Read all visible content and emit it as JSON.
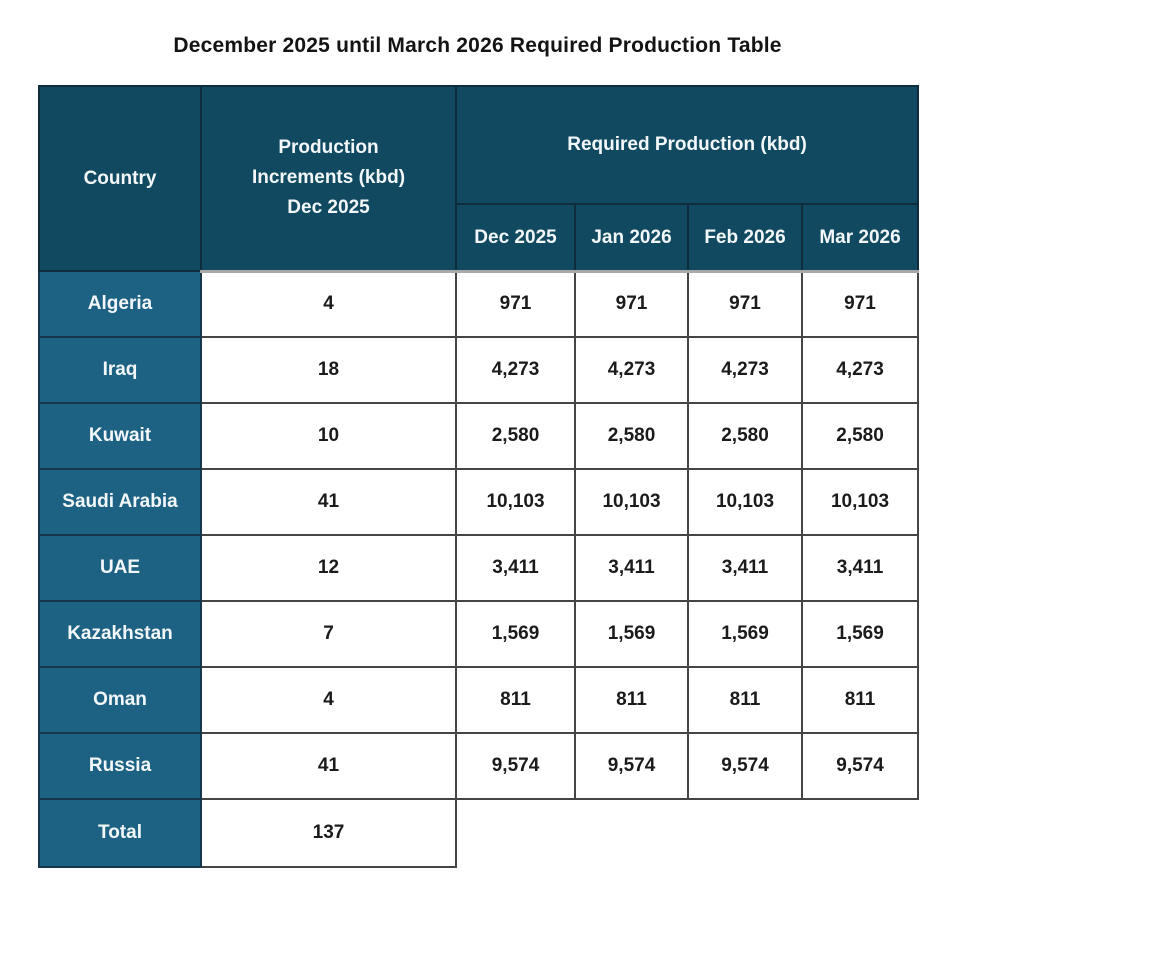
{
  "title": "December 2025 until March 2026 Required Production Table",
  "colors": {
    "header_bg": "#114a60",
    "country_cell_bg": "#1e6283",
    "header_text": "#f3f7f9",
    "data_text": "#1b1b1b",
    "data_border": "#454545",
    "header_border": "#0e2c3c",
    "header_bottom_separator": "#a8a8a8",
    "page_bg": "#ffffff"
  },
  "table": {
    "headers": {
      "country": "Country",
      "increments_line1": "Production Increments (kbd)",
      "increments_line2": "Dec 2025",
      "required": "Required Production (kbd)",
      "months": [
        "Dec 2025",
        "Jan 2026",
        "Feb 2026",
        "Mar 2026"
      ]
    },
    "rows": [
      {
        "country": "Algeria",
        "increment": "4",
        "required": [
          "971",
          "971",
          "971",
          "971"
        ]
      },
      {
        "country": "Iraq",
        "increment": "18",
        "required": [
          "4,273",
          "4,273",
          "4,273",
          "4,273"
        ]
      },
      {
        "country": "Kuwait",
        "increment": "10",
        "required": [
          "2,580",
          "2,580",
          "2,580",
          "2,580"
        ]
      },
      {
        "country": "Saudi Arabia",
        "increment": "41",
        "required": [
          "10,103",
          "10,103",
          "10,103",
          "10,103"
        ]
      },
      {
        "country": "UAE",
        "increment": "12",
        "required": [
          "3,411",
          "3,411",
          "3,411",
          "3,411"
        ]
      },
      {
        "country": "Kazakhstan",
        "increment": "7",
        "required": [
          "1,569",
          "1,569",
          "1,569",
          "1,569"
        ]
      },
      {
        "country": "Oman",
        "increment": "4",
        "required": [
          "811",
          "811",
          "811",
          "811"
        ]
      },
      {
        "country": "Russia",
        "increment": "41",
        "required": [
          "9,574",
          "9,574",
          "9,574",
          "9,574"
        ]
      }
    ],
    "total": {
      "label": "Total",
      "value": "137"
    }
  },
  "chart_data": {
    "type": "table",
    "title": "December 2025 until March 2026 Required Production Table",
    "columns": [
      "Country",
      "Production Increments (kbd) Dec 2025",
      "Dec 2025",
      "Jan 2026",
      "Feb 2026",
      "Mar 2026"
    ],
    "column_group": {
      "label": "Required Production (kbd)",
      "columns": [
        "Dec 2025",
        "Jan 2026",
        "Feb 2026",
        "Mar 2026"
      ]
    },
    "rows": [
      [
        "Algeria",
        4,
        971,
        971,
        971,
        971
      ],
      [
        "Iraq",
        18,
        4273,
        4273,
        4273,
        4273
      ],
      [
        "Kuwait",
        10,
        2580,
        2580,
        2580,
        2580
      ],
      [
        "Saudi Arabia",
        41,
        10103,
        10103,
        10103,
        10103
      ],
      [
        "UAE",
        12,
        3411,
        3411,
        3411,
        3411
      ],
      [
        "Kazakhstan",
        7,
        1569,
        1569,
        1569,
        1569
      ],
      [
        "Oman",
        4,
        811,
        811,
        811,
        811
      ],
      [
        "Russia",
        41,
        9574,
        9574,
        9574,
        9574
      ]
    ],
    "total_row": [
      "Total",
      137,
      null,
      null,
      null,
      null
    ]
  }
}
